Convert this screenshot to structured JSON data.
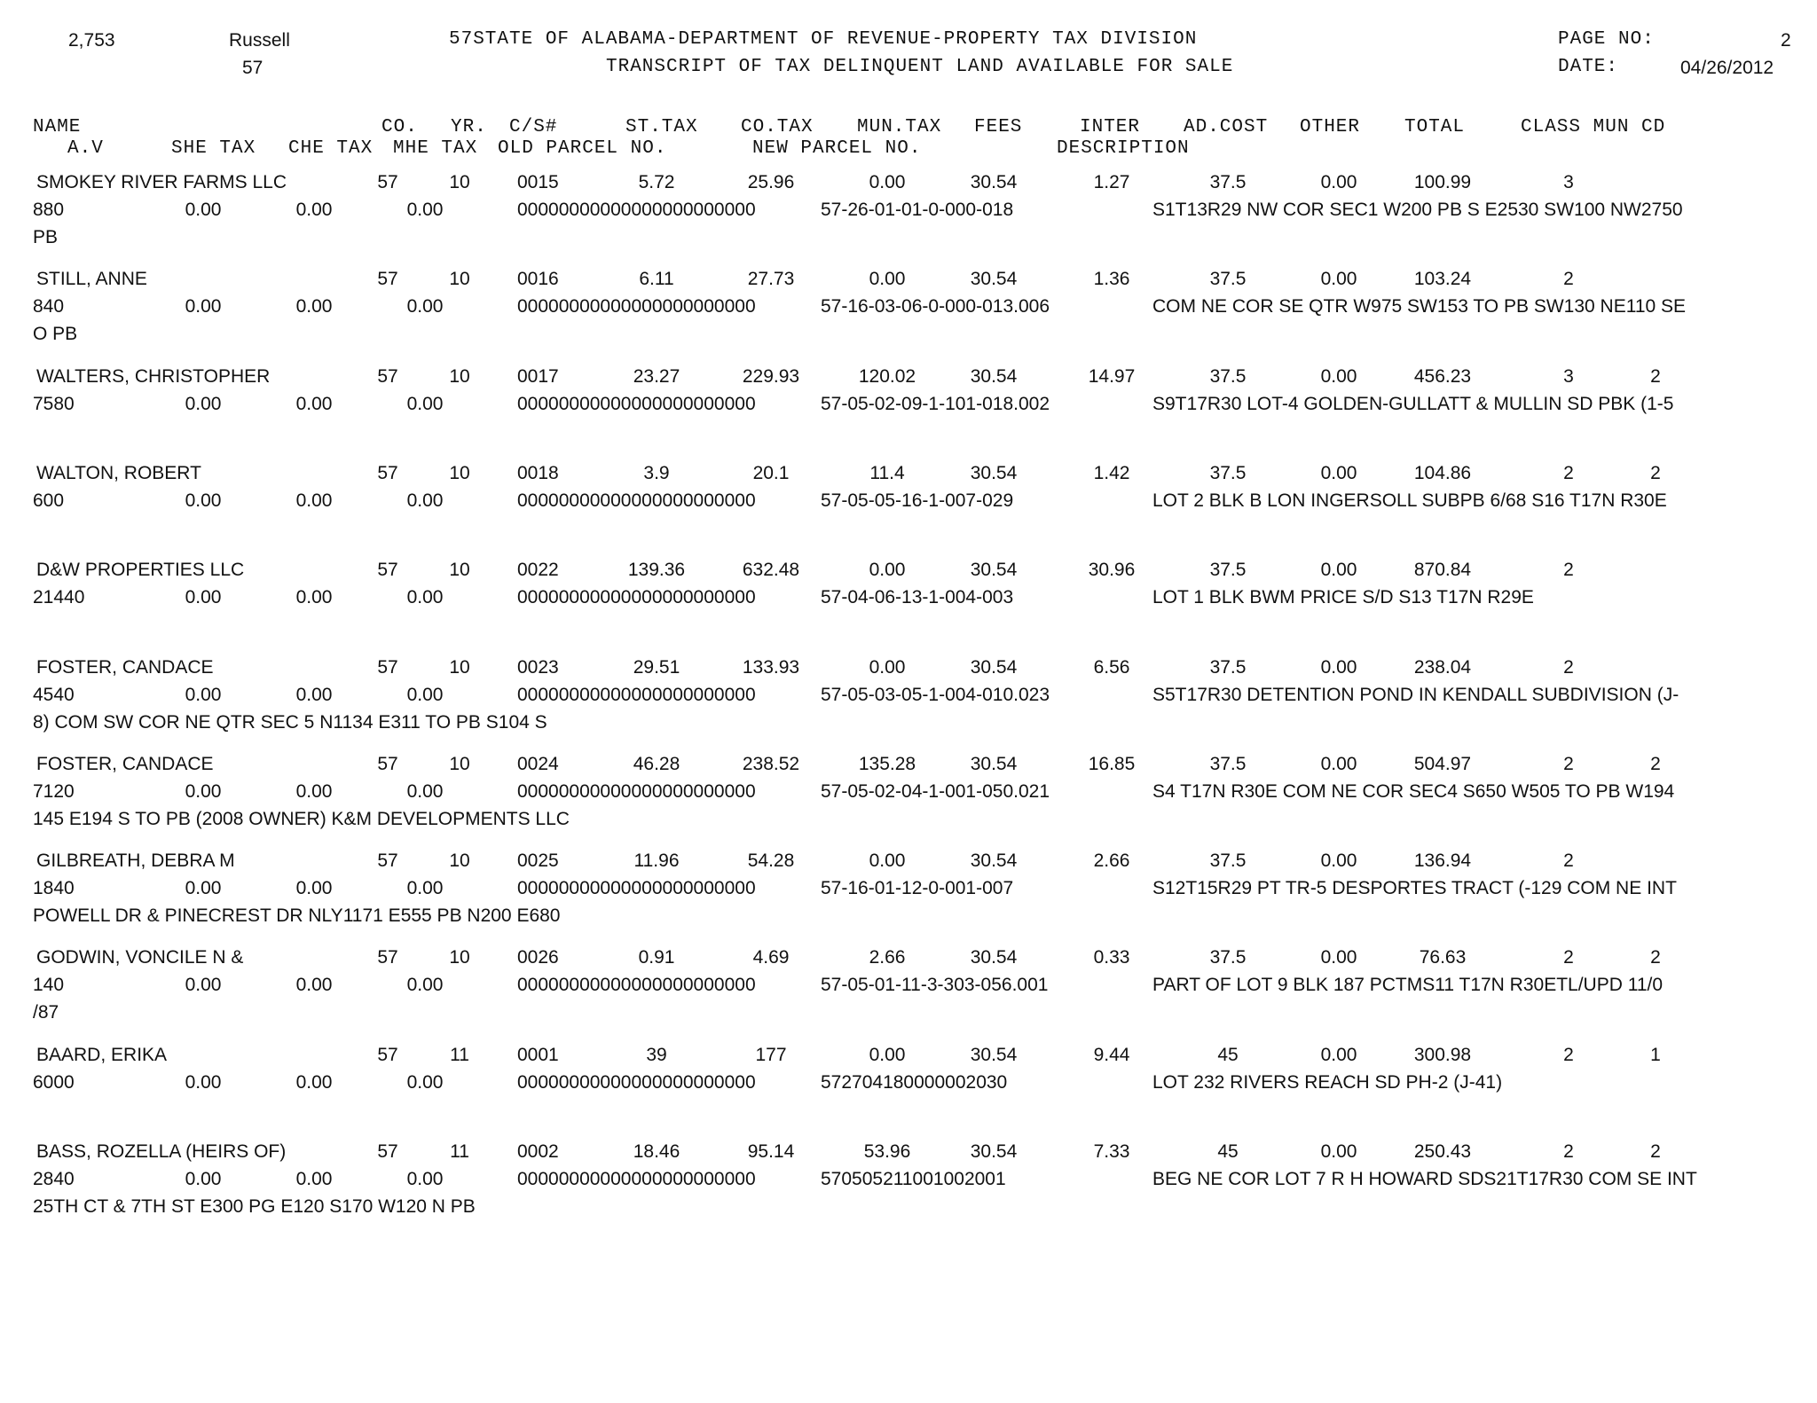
{
  "header": {
    "count": "2,753",
    "county_name": "Russell",
    "county_code": "57",
    "title_line1": "57STATE OF ALABAMA-DEPARTMENT OF REVENUE-PROPERTY TAX DIVISION",
    "title_line2": "TRANSCRIPT OF TAX DELINQUENT LAND AVAILABLE FOR SALE",
    "page_label": "PAGE NO:",
    "page_value": "2",
    "date_label": "DATE:",
    "date_value": "04/26/2012"
  },
  "columns": {
    "row1": [
      "NAME",
      "CO.",
      "YR.",
      "C/S#",
      "ST.TAX",
      "CO.TAX",
      "MUN.TAX",
      "FEES",
      "INTER",
      "AD.COST",
      "OTHER",
      "TOTAL",
      "CLASS MUN CD"
    ],
    "row2": [
      "A.V",
      "SHE TAX",
      "CHE TAX",
      "MHE TAX",
      "OLD PARCEL NO.",
      "NEW PARCEL NO.",
      "DESCRIPTION"
    ]
  },
  "records": [
    {
      "name": "SMOKEY RIVER FARMS LLC",
      "co": "57",
      "yr": "10",
      "cs": "0015",
      "st_tax": "5.72",
      "co_tax": "25.96",
      "mun_tax": "0.00",
      "fees": "30.54",
      "inter": "1.27",
      "ad_cost": "37.5",
      "other": "0.00",
      "total": "100.99",
      "class": "3",
      "mun_cd": "",
      "av": "880",
      "she_tax": "0.00",
      "che_tax": "0.00",
      "mhe_tax": "0.00",
      "old_parcel": "00000000000000000000000",
      "new_parcel": "57-26-01-01-0-000-018",
      "description": "S1T13R29 NW COR SEC1 W200 PB S E2530 SW100 NW2750",
      "description_cont": "PB"
    },
    {
      "name": "STILL, ANNE",
      "co": "57",
      "yr": "10",
      "cs": "0016",
      "st_tax": "6.11",
      "co_tax": "27.73",
      "mun_tax": "0.00",
      "fees": "30.54",
      "inter": "1.36",
      "ad_cost": "37.5",
      "other": "0.00",
      "total": "103.24",
      "class": "2",
      "mun_cd": "",
      "av": "840",
      "she_tax": "0.00",
      "che_tax": "0.00",
      "mhe_tax": "0.00",
      "old_parcel": "00000000000000000000000",
      "new_parcel": "57-16-03-06-0-000-013.006",
      "description": "COM NE COR SE QTR W975 SW153 TO PB SW130 NE110 SE",
      "description_cont": "O PB"
    },
    {
      "name": "WALTERS, CHRISTOPHER",
      "co": "57",
      "yr": "10",
      "cs": "0017",
      "st_tax": "23.27",
      "co_tax": "229.93",
      "mun_tax": "120.02",
      "fees": "30.54",
      "inter": "14.97",
      "ad_cost": "37.5",
      "other": "0.00",
      "total": "456.23",
      "class": "3",
      "mun_cd": "2",
      "av": "7580",
      "she_tax": "0.00",
      "che_tax": "0.00",
      "mhe_tax": "0.00",
      "old_parcel": "00000000000000000000000",
      "new_parcel": "57-05-02-09-1-101-018.002",
      "description": "S9T17R30 LOT-4 GOLDEN-GULLATT & MULLIN SD PBK (1-5",
      "description_cont": ""
    },
    {
      "name": "WALTON, ROBERT",
      "co": "57",
      "yr": "10",
      "cs": "0018",
      "st_tax": "3.9",
      "co_tax": "20.1",
      "mun_tax": "11.4",
      "fees": "30.54",
      "inter": "1.42",
      "ad_cost": "37.5",
      "other": "0.00",
      "total": "104.86",
      "class": "2",
      "mun_cd": "2",
      "av": "600",
      "she_tax": "0.00",
      "che_tax": "0.00",
      "mhe_tax": "0.00",
      "old_parcel": "00000000000000000000000",
      "new_parcel": "57-05-05-16-1-007-029",
      "description": "LOT 2 BLK B LON INGERSOLL SUBPB 6/68 S16 T17N R30E",
      "description_cont": ""
    },
    {
      "name": "D&W PROPERTIES LLC",
      "co": "57",
      "yr": "10",
      "cs": "0022",
      "st_tax": "139.36",
      "co_tax": "632.48",
      "mun_tax": "0.00",
      "fees": "30.54",
      "inter": "30.96",
      "ad_cost": "37.5",
      "other": "0.00",
      "total": "870.84",
      "class": "2",
      "mun_cd": "",
      "av": "21440",
      "she_tax": "0.00",
      "che_tax": "0.00",
      "mhe_tax": "0.00",
      "old_parcel": "00000000000000000000000",
      "new_parcel": "57-04-06-13-1-004-003",
      "description": "LOT 1 BLK BWM PRICE S/D S13 T17N R29E",
      "description_cont": ""
    },
    {
      "name": "FOSTER, CANDACE",
      "co": "57",
      "yr": "10",
      "cs": "0023",
      "st_tax": "29.51",
      "co_tax": "133.93",
      "mun_tax": "0.00",
      "fees": "30.54",
      "inter": "6.56",
      "ad_cost": "37.5",
      "other": "0.00",
      "total": "238.04",
      "class": "2",
      "mun_cd": "",
      "av": "4540",
      "she_tax": "0.00",
      "che_tax": "0.00",
      "mhe_tax": "0.00",
      "old_parcel": "00000000000000000000000",
      "new_parcel": "57-05-03-05-1-004-010.023",
      "description": "S5T17R30 DETENTION POND IN KENDALL SUBDIVISION (J-",
      "description_cont": "8) COM SW COR NE QTR SEC 5 N1134 E311 TO PB S104 S"
    },
    {
      "name": "FOSTER, CANDACE",
      "co": "57",
      "yr": "10",
      "cs": "0024",
      "st_tax": "46.28",
      "co_tax": "238.52",
      "mun_tax": "135.28",
      "fees": "30.54",
      "inter": "16.85",
      "ad_cost": "37.5",
      "other": "0.00",
      "total": "504.97",
      "class": "2",
      "mun_cd": "2",
      "av": "7120",
      "she_tax": "0.00",
      "che_tax": "0.00",
      "mhe_tax": "0.00",
      "old_parcel": "00000000000000000000000",
      "new_parcel": "57-05-02-04-1-001-050.021",
      "description": "S4 T17N R30E COM NE COR SEC4 S650 W505 TO PB W194",
      "description_cont": "145 E194 S TO PB (2008 OWNER) K&M DEVELOPMENTS LLC"
    },
    {
      "name": "GILBREATH, DEBRA M",
      "co": "57",
      "yr": "10",
      "cs": "0025",
      "st_tax": "11.96",
      "co_tax": "54.28",
      "mun_tax": "0.00",
      "fees": "30.54",
      "inter": "2.66",
      "ad_cost": "37.5",
      "other": "0.00",
      "total": "136.94",
      "class": "2",
      "mun_cd": "",
      "av": "1840",
      "she_tax": "0.00",
      "che_tax": "0.00",
      "mhe_tax": "0.00",
      "old_parcel": "00000000000000000000000",
      "new_parcel": "57-16-01-12-0-001-007",
      "description": "S12T15R29 PT TR-5 DESPORTES TRACT (-129 COM NE INT",
      "description_cont": "POWELL DR & PINECREST DR NLY1171 E555 PB N200 E680"
    },
    {
      "name": "GODWIN, VONCILE N &",
      "co": "57",
      "yr": "10",
      "cs": "0026",
      "st_tax": "0.91",
      "co_tax": "4.69",
      "mun_tax": "2.66",
      "fees": "30.54",
      "inter": "0.33",
      "ad_cost": "37.5",
      "other": "0.00",
      "total": "76.63",
      "class": "2",
      "mun_cd": "2",
      "av": "140",
      "she_tax": "0.00",
      "che_tax": "0.00",
      "mhe_tax": "0.00",
      "old_parcel": "00000000000000000000000",
      "new_parcel": "57-05-01-11-3-303-056.001",
      "description": "PART OF LOT 9 BLK 187 PCTMS11 T17N R30ETL/UPD 11/0",
      "description_cont": "/87"
    },
    {
      "name": "BAARD, ERIKA",
      "co": "57",
      "yr": "11",
      "cs": "0001",
      "st_tax": "39",
      "co_tax": "177",
      "mun_tax": "0.00",
      "fees": "30.54",
      "inter": "9.44",
      "ad_cost": "45",
      "other": "0.00",
      "total": "300.98",
      "class": "2",
      "mun_cd": "1",
      "av": "6000",
      "she_tax": "0.00",
      "che_tax": "0.00",
      "mhe_tax": "0.00",
      "old_parcel": "00000000000000000000000",
      "new_parcel": "572704180000002030",
      "description": "LOT 232 RIVERS REACH SD PH-2 (J-41)",
      "description_cont": ""
    },
    {
      "name": "BASS, ROZELLA (HEIRS OF)",
      "co": "57",
      "yr": "11",
      "cs": "0002",
      "st_tax": "18.46",
      "co_tax": "95.14",
      "mun_tax": "53.96",
      "fees": "30.54",
      "inter": "7.33",
      "ad_cost": "45",
      "other": "0.00",
      "total": "250.43",
      "class": "2",
      "mun_cd": "2",
      "av": "2840",
      "she_tax": "0.00",
      "che_tax": "0.00",
      "mhe_tax": "0.00",
      "old_parcel": "00000000000000000000000",
      "new_parcel": "570505211001002001",
      "description": "BEG NE COR LOT 7 R H HOWARD SDS21T17R30 COM SE INT",
      "description_cont": "25TH CT & 7TH ST E300 PG E120 S170 W120 N PB"
    }
  ]
}
